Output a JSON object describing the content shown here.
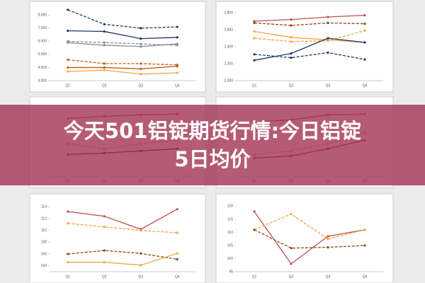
{
  "banner": {
    "title_lines": [
      "今天501铝锭期货行情:今日铝锭",
      "5日均价"
    ]
  },
  "chart_data": [
    {
      "type": "line",
      "categories": [
        "Q1",
        "Q2",
        "Q3",
        "Q4"
      ],
      "ylim": [
        3000,
        8500
      ],
      "yticks": [
        {
          "value": 3000,
          "label": "3,000"
        },
        {
          "value": 4000,
          "label": "4,000"
        },
        {
          "value": 5000,
          "label": "5,000"
        },
        {
          "value": 6000,
          "label": "6,000"
        },
        {
          "value": 7000,
          "label": "7,000"
        },
        {
          "value": 8000,
          "label": "8,000"
        }
      ],
      "series": [
        {
          "color": "#1f3864",
          "dash": true,
          "values": [
            8400,
            7300,
            7000,
            7100
          ]
        },
        {
          "color": "#1f3864",
          "dash": false,
          "values": [
            6800,
            6750,
            6200,
            6300
          ]
        },
        {
          "color": "#8c8c8c",
          "dash": true,
          "values": [
            6000,
            5900,
            5800,
            5700
          ]
        },
        {
          "color": "#8c8c8c",
          "dash": false,
          "values": [
            5900,
            5700,
            5600,
            5800
          ]
        },
        {
          "color": "#c55a11",
          "dash": true,
          "values": [
            4600,
            4300,
            4300,
            4200
          ]
        },
        {
          "color": "#c55a11",
          "dash": false,
          "values": [
            4000,
            4000,
            3900,
            4100
          ]
        },
        {
          "color": "#f4a442",
          "dash": false,
          "values": [
            3700,
            3800,
            3500,
            3600
          ]
        }
      ]
    },
    {
      "type": "line",
      "categories": [
        "Q1",
        "Q2",
        "Q3",
        "Q4"
      ],
      "ylim": [
        2000,
        2850
      ],
      "yticks": [
        {
          "value": 2000,
          "label": "2,000"
        },
        {
          "value": 2200,
          "label": "2,200"
        },
        {
          "value": 2400,
          "label": "2,400"
        },
        {
          "value": 2600,
          "label": "2,600"
        },
        {
          "value": 2800,
          "label": "2,800"
        }
      ],
      "series": [
        {
          "color": "#c0504d",
          "dash": false,
          "values": [
            2700,
            2720,
            2750,
            2770
          ]
        },
        {
          "color": "#8b4513",
          "dash": true,
          "values": [
            2680,
            2650,
            2680,
            2670
          ]
        },
        {
          "color": "#f4a442",
          "dash": false,
          "values": [
            2580,
            2510,
            2480,
            2450
          ]
        },
        {
          "color": "#f4a442",
          "dash": true,
          "values": [
            2500,
            2460,
            2470,
            2590
          ]
        },
        {
          "color": "#1f3864",
          "dash": false,
          "values": [
            2240,
            2320,
            2500,
            2450
          ]
        },
        {
          "color": "#1f3864",
          "dash": true,
          "values": [
            2310,
            2270,
            2330,
            2250
          ]
        }
      ]
    },
    {
      "type": "line",
      "categories": [
        "Q1",
        "Q2",
        "Q3",
        "Q4"
      ],
      "ylim": [
        0,
        10
      ],
      "series": [
        {
          "color": "#c0504d",
          "dash": false,
          "values": [
            8,
            8.3,
            8.5,
            8.6
          ]
        },
        {
          "color": "#f4a442",
          "dash": true,
          "values": [
            4.5,
            3.8,
            4.5,
            5
          ]
        },
        {
          "color": "#1f3864",
          "dash": false,
          "values": [
            3,
            3.2,
            3.5,
            3.8
          ]
        }
      ]
    },
    {
      "type": "line",
      "categories": [
        "Q1",
        "Q2",
        "Q3",
        "Q4"
      ],
      "ylim": [
        0,
        10
      ],
      "series": [
        {
          "color": "#c0504d",
          "dash": false,
          "values": [
            7.5,
            7.8,
            8.5,
            8.6
          ]
        },
        {
          "color": "#f4a442",
          "dash": true,
          "values": [
            3,
            3.5,
            4.5,
            6
          ]
        },
        {
          "color": "#8b4513",
          "dash": false,
          "values": [
            2.5,
            2.8,
            3.8,
            5
          ]
        }
      ]
    },
    {
      "type": "line",
      "categories": [
        "Q1",
        "Q2",
        "Q3",
        "Q4"
      ],
      "ylim": [
        103,
        115
      ],
      "yticks": [
        104,
        106,
        108,
        110,
        112,
        114
      ],
      "series": [
        {
          "color": "#c0504d",
          "dash": false,
          "values": [
            113.2,
            112.4,
            110.2,
            113.6
          ]
        },
        {
          "color": "#f4a442",
          "dash": true,
          "values": [
            111.2,
            110.6,
            110,
            109.6
          ]
        },
        {
          "color": "#8b4513",
          "dash": true,
          "values": [
            106,
            106.6,
            106.1,
            105.1
          ]
        },
        {
          "color": "#f4a442",
          "dash": false,
          "values": [
            104.6,
            104.6,
            104.1,
            106.1
          ]
        }
      ]
    },
    {
      "type": "line",
      "categories": [
        "Q1",
        "Q2",
        "Q3",
        "Q4"
      ],
      "ylim": [
        95,
        122
      ],
      "yticks": [
        95,
        100,
        105,
        110,
        115,
        120
      ],
      "series": [
        {
          "color": "#c0504d",
          "dash": false,
          "values": [
            118,
            98,
            108.5,
            111
          ]
        },
        {
          "color": "#f4a442",
          "dash": true,
          "values": [
            111,
            117,
            107.5,
            111
          ]
        },
        {
          "color": "#8b4513",
          "dash": true,
          "values": [
            111,
            104,
            104.3,
            105
          ]
        }
      ]
    }
  ]
}
